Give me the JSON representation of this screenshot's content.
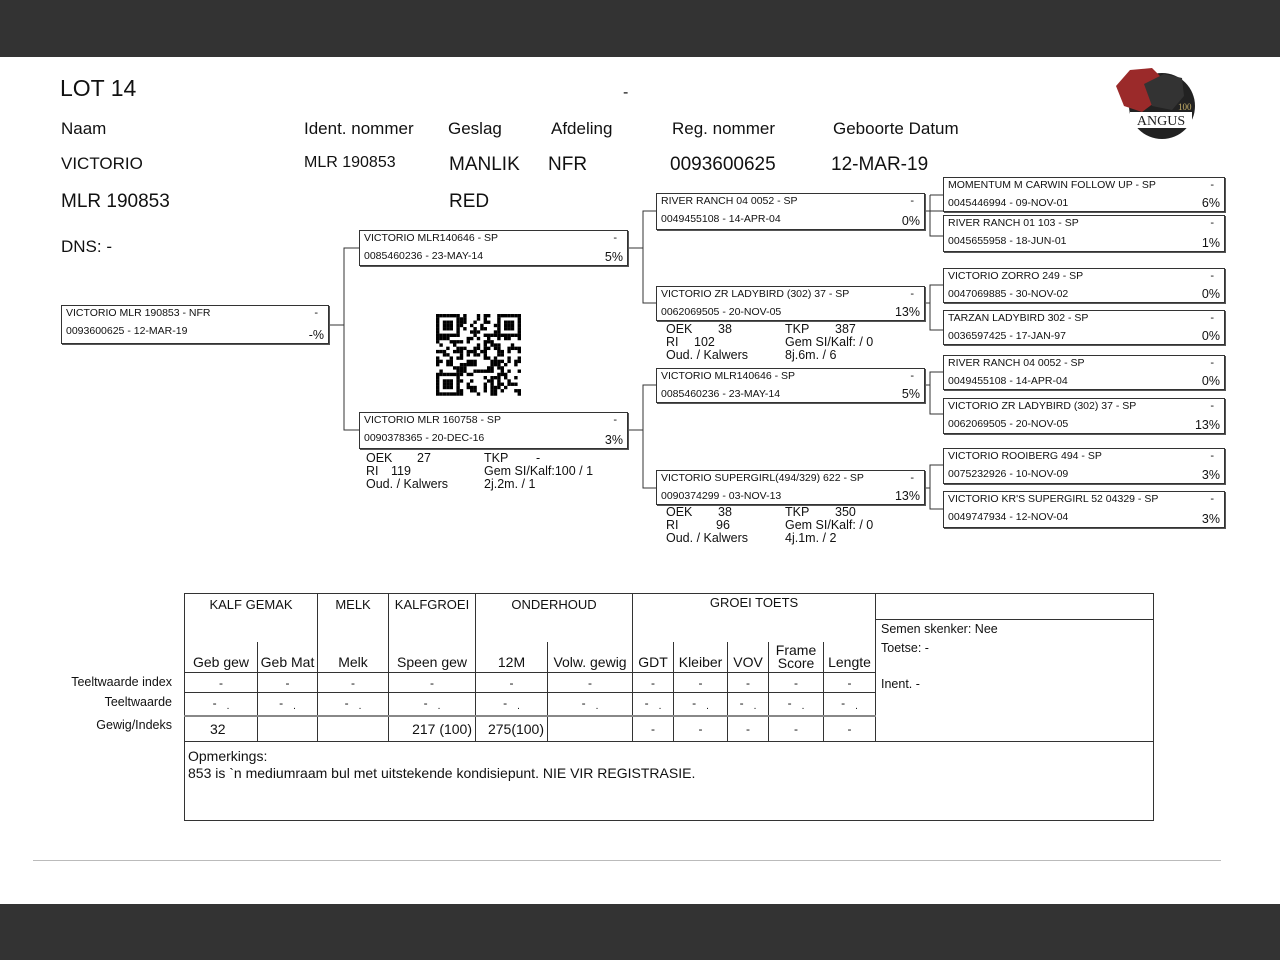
{
  "lot": "LOT 14",
  "top_dash": "-",
  "logo": {
    "text": "ANGUS",
    "badge": "100",
    "colors": [
      "#9b2a2a",
      "#222222"
    ]
  },
  "headers": {
    "naam": "Naam",
    "ident": "Ident. nommer",
    "geslag": "Geslag",
    "afdeling": "Afdeling",
    "reg": "Reg. nommer",
    "geboorte": "Geboorte Datum"
  },
  "animal": {
    "name": "VICTORIO",
    "name2": "MLR 190853",
    "ident": "MLR 190853",
    "geslag": "MANLIK",
    "kleur": "RED",
    "afdeling": "NFR",
    "reg": "0093600625",
    "geboorte": "12-MAR-19",
    "dns": "DNS: -"
  },
  "pedigree": {
    "subject": {
      "name": "VICTORIO MLR 190853 - NFR",
      "id": "0093600625 -  12-MAR-19",
      "pct": "-%"
    },
    "sire": {
      "name": "VICTORIO MLR140646 - SP",
      "id": "0085460236 - 23-MAY-14",
      "pct": "5%"
    },
    "dam": {
      "name": "VICTORIO MLR 160758 - SP",
      "id": "0090378365 - 20-DEC-16",
      "pct": "3%"
    },
    "ss": {
      "name": "RIVER RANCH 04 0052 - SP",
      "id": "0049455108 - 14-APR-04",
      "pct": "0%"
    },
    "sd": {
      "name": "VICTORIO ZR LADYBIRD (302) 37 - SP",
      "id": "0062069505 - 20-NOV-05",
      "pct": "13%"
    },
    "ds": {
      "name": "VICTORIO MLR140646 - SP",
      "id": "0085460236 - 23-MAY-14",
      "pct": "5%"
    },
    "dd": {
      "name": "VICTORIO SUPERGIRL(494/329) 622 - SP",
      "id": "0090374299 - 03-NOV-13",
      "pct": "13%"
    },
    "g3": [
      {
        "name": "MOMENTUM M CARWIN FOLLOW UP - SP",
        "id": "0045446994 - 09-NOV-01",
        "pct": "6%"
      },
      {
        "name": "RIVER RANCH 01 103 - SP",
        "id": "0045655958 - 18-JUN-01",
        "pct": "1%"
      },
      {
        "name": "VICTORIO ZORRO 249 - SP",
        "id": "0047069885 - 30-NOV-02",
        "pct": "0%"
      },
      {
        "name": "TARZAN LADYBIRD 302 - SP",
        "id": "0036597425 - 17-JAN-97",
        "pct": "0%"
      },
      {
        "name": "RIVER RANCH 04 0052 - SP",
        "id": "0049455108 - 14-APR-04",
        "pct": "0%"
      },
      {
        "name": "VICTORIO ZR LADYBIRD (302) 37 - SP",
        "id": "0062069505 - 20-NOV-05",
        "pct": "13%"
      },
      {
        "name": "VICTORIO ROOIBERG 494 - SP",
        "id": "0075232926 - 10-NOV-09",
        "pct": "3%"
      },
      {
        "name": "VICTORIO KR'S SUPERGIRL 52 04329 - SP",
        "id": "0049747934 - 12-NOV-04",
        "pct": "3%"
      }
    ],
    "dash": "-"
  },
  "stats": {
    "dam": {
      "oek": "OEK",
      "oek_v": "27",
      "tkp": "TKP",
      "tkp_v": "-",
      "ri": "RI",
      "ri_v": "119",
      "gem": "Gem SI/Kalf:100 / 1",
      "oud": "Oud. / Kalwers",
      "oud_v": "2j.2m. / 1"
    },
    "sd": {
      "oek": "OEK",
      "oek_v": "38",
      "tkp": "TKP",
      "tkp_v": "387",
      "ri": "RI",
      "ri_v": "102",
      "gem": "Gem SI/Kalf:   / 0",
      "oud": "Oud. / Kalwers",
      "oud_v": "8j.6m. / 6"
    },
    "dd": {
      "oek": "OEK",
      "oek_v": "38",
      "tkp": "TKP",
      "tkp_v": "350",
      "ri": "RI",
      "ri_v": "96",
      "gem": "Gem SI/Kalf:   / 0",
      "oud": "Oud. / Kalwers",
      "oud_v": "4j.1m. / 2"
    }
  },
  "table": {
    "groups": [
      "KALF GEMAK",
      "MELK",
      "KALFGROEI",
      "ONDERHOUD",
      "GROEI TOETS"
    ],
    "columns": [
      "Geb gew",
      "Geb Mat",
      "Melk",
      "Speen gew",
      "12M",
      "Volw. gewig",
      "GDT",
      "Kleiber",
      "VOV",
      "Frame Score",
      "Lengte"
    ],
    "row_labels": [
      "Teeltwaarde index",
      "Teeltwaarde",
      "Gewig/Indeks"
    ],
    "index": [
      "-",
      "-",
      "-",
      "-",
      "-",
      "-",
      "-",
      "-",
      "-",
      "-",
      "-"
    ],
    "teeltwaarde": [
      "-",
      "-",
      "-",
      "-",
      "-",
      "-",
      "-",
      "-",
      "-",
      "-",
      "-"
    ],
    "gewig": [
      "32",
      "",
      "",
      "217 (100)",
      "275(100)",
      "",
      "-",
      "-",
      "-",
      "-",
      "-"
    ],
    "semen": "Semen skenker: Nee",
    "toetse": "Toetse: -",
    "inent": "Inent. -",
    "opm_label": "Opmerkings:",
    "opm": "853 is `n mediumraam bul met uitstekende kondisiepunt. NIE VIR REGISTRASIE."
  }
}
